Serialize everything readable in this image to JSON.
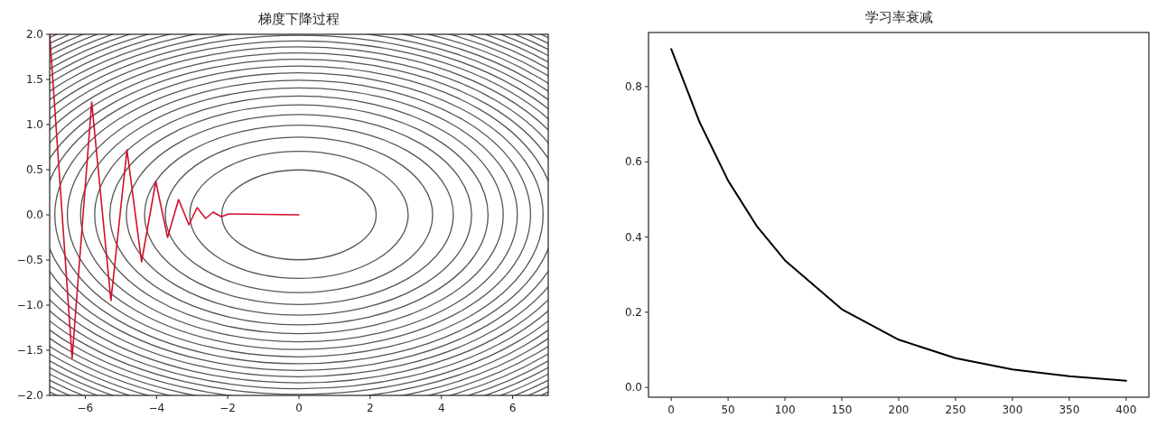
{
  "chart_data": [
    {
      "type": "line",
      "title": "梯度下降过程",
      "x": [
        -7,
        -6.37,
        -5.82,
        -5.28,
        -4.83,
        -4.42,
        -4.02,
        -3.69,
        -3.38,
        -3.09,
        -2.86,
        -2.62,
        -2.41,
        -2.18,
        -1.97,
        0
      ],
      "series": [
        {
          "color": "#d0102a",
          "values": [
            2.0,
            -1.59,
            1.25,
            -0.95,
            0.72,
            -0.52,
            0.37,
            -0.25,
            0.17,
            -0.11,
            0.08,
            -0.04,
            0.03,
            -0.02,
            0.01,
            0
          ]
        }
      ],
      "xlim": [
        -7,
        7
      ],
      "ylim": [
        -2,
        2
      ],
      "xticks": [
        {
          "value": -6,
          "label": "−6"
        },
        {
          "value": -4,
          "label": "−4"
        },
        {
          "value": -2,
          "label": "−2"
        },
        0,
        2,
        4,
        6
      ],
      "yticks": [
        {
          "value": -2,
          "label": "−2.0"
        },
        {
          "value": -1.5,
          "label": "−1.5"
        },
        {
          "value": -1,
          "label": "−1.0"
        },
        {
          "value": -0.5,
          "label": "−0.5"
        },
        {
          "value": 0,
          "label": "0.0"
        },
        0.5,
        {
          "value": 1,
          "label": "1.0"
        },
        1.5,
        {
          "value": 2,
          "label": "2.0"
        }
      ]
    },
    {
      "type": "line",
      "title": "学习率衰减",
      "x": [
        0,
        25,
        50,
        75,
        100,
        150,
        200,
        250,
        300,
        350,
        400
      ],
      "series": [
        {
          "color": "#000000",
          "values": [
            0.9,
            0.705,
            0.55,
            0.43,
            0.338,
            0.208,
            0.127,
            0.078,
            0.048,
            0.03,
            0.018
          ]
        }
      ],
      "xlim": [
        -20,
        420
      ],
      "ylim": [
        -0.026,
        0.944
      ],
      "xticks": [
        0,
        50,
        100,
        150,
        200,
        250,
        300,
        350,
        400
      ],
      "yticks": [
        {
          "value": 0,
          "label": "0.0"
        },
        0.2,
        0.4,
        0.6,
        0.8
      ]
    }
  ]
}
